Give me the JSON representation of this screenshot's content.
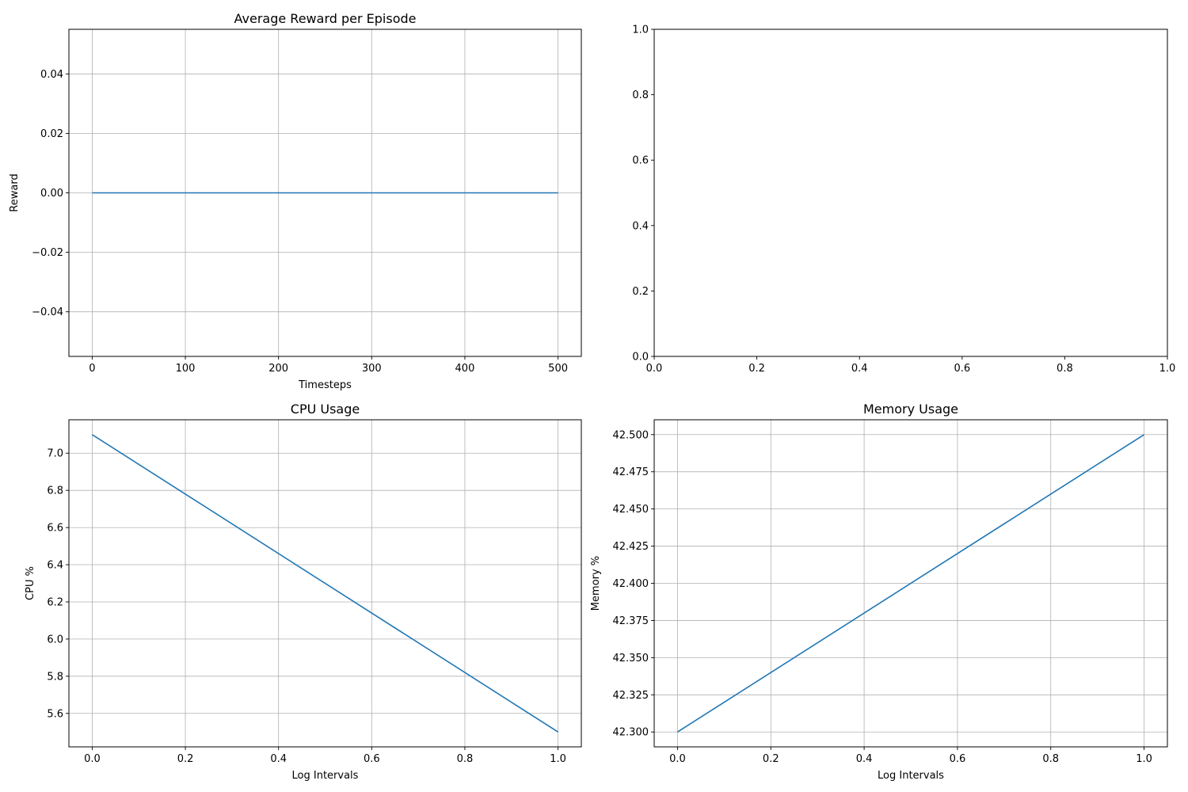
{
  "chart_data": [
    {
      "type": "line",
      "title": "Average Reward per Episode",
      "xlabel": "Timesteps",
      "ylabel": "Reward",
      "xlim": [
        -25,
        525
      ],
      "ylim": [
        -0.055,
        0.055
      ],
      "x_ticks": [
        0,
        100,
        200,
        300,
        400,
        500
      ],
      "x_tick_labels": [
        "0",
        "100",
        "200",
        "300",
        "400",
        "500"
      ],
      "y_ticks": [
        -0.04,
        -0.02,
        0.0,
        0.02,
        0.04
      ],
      "y_tick_labels": [
        "−0.04",
        "−0.02",
        "0.00",
        "0.02",
        "0.04"
      ],
      "grid": true,
      "series": [
        {
          "color": "#1f77b4",
          "x": [
            0,
            500
          ],
          "y": [
            0,
            0
          ]
        }
      ]
    },
    {
      "type": "line",
      "title": "",
      "xlabel": "",
      "ylabel": "",
      "xlim": [
        0,
        1
      ],
      "ylim": [
        0,
        1
      ],
      "x_ticks": [
        0,
        0.2,
        0.4,
        0.6,
        0.8,
        1.0
      ],
      "x_tick_labels": [
        "0.0",
        "0.2",
        "0.4",
        "0.6",
        "0.8",
        "1.0"
      ],
      "y_ticks": [
        0,
        0.2,
        0.4,
        0.6,
        0.8,
        1.0
      ],
      "y_tick_labels": [
        "0.0",
        "0.2",
        "0.4",
        "0.6",
        "0.8",
        "1.0"
      ],
      "grid": false,
      "series": []
    },
    {
      "type": "line",
      "title": "CPU Usage",
      "xlabel": "Log Intervals",
      "ylabel": "CPU %",
      "xlim": [
        -0.05,
        1.05
      ],
      "ylim": [
        5.42,
        7.18
      ],
      "x_ticks": [
        0,
        0.2,
        0.4,
        0.6,
        0.8,
        1.0
      ],
      "x_tick_labels": [
        "0.0",
        "0.2",
        "0.4",
        "0.6",
        "0.8",
        "1.0"
      ],
      "y_ticks": [
        5.6,
        5.8,
        6.0,
        6.2,
        6.4,
        6.6,
        6.8,
        7.0
      ],
      "y_tick_labels": [
        "5.6",
        "5.8",
        "6.0",
        "6.2",
        "6.4",
        "6.6",
        "6.8",
        "7.0"
      ],
      "grid": true,
      "series": [
        {
          "color": "#1f77b4",
          "x": [
            0,
            1
          ],
          "y": [
            7.1,
            5.5
          ]
        }
      ]
    },
    {
      "type": "line",
      "title": "Memory Usage",
      "xlabel": "Log Intervals",
      "ylabel": "Memory %",
      "xlim": [
        -0.05,
        1.05
      ],
      "ylim": [
        42.29,
        42.51
      ],
      "x_ticks": [
        0,
        0.2,
        0.4,
        0.6,
        0.8,
        1.0
      ],
      "x_tick_labels": [
        "0.0",
        "0.2",
        "0.4",
        "0.6",
        "0.8",
        "1.0"
      ],
      "y_ticks": [
        42.3,
        42.325,
        42.35,
        42.375,
        42.4,
        42.425,
        42.45,
        42.475,
        42.5
      ],
      "y_tick_labels": [
        "42.300",
        "42.325",
        "42.350",
        "42.375",
        "42.400",
        "42.425",
        "42.450",
        "42.475",
        "42.500"
      ],
      "grid": true,
      "series": [
        {
          "color": "#1f77b4",
          "x": [
            0,
            1
          ],
          "y": [
            42.3,
            42.5
          ]
        }
      ]
    }
  ]
}
